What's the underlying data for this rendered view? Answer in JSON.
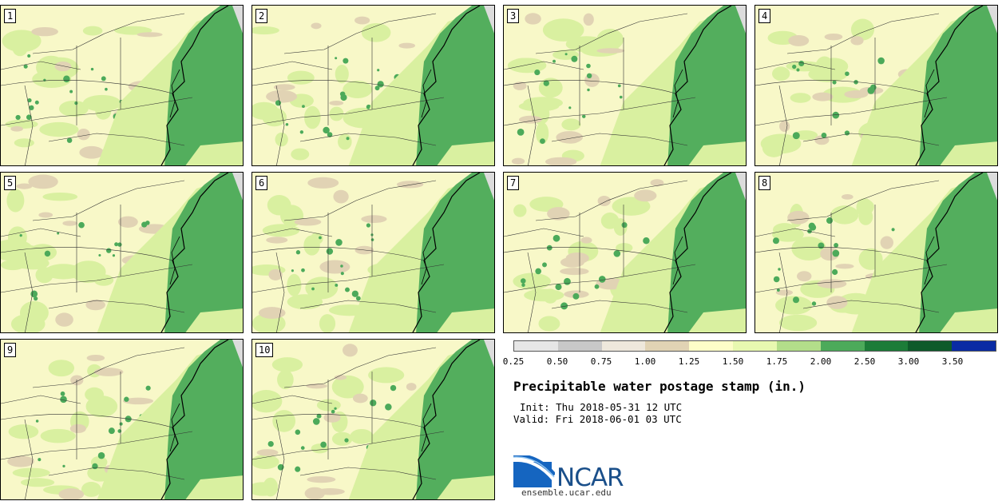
{
  "panels": [
    {
      "label": "1"
    },
    {
      "label": "2"
    },
    {
      "label": "3"
    },
    {
      "label": "4"
    },
    {
      "label": "5"
    },
    {
      "label": "6"
    },
    {
      "label": "7"
    },
    {
      "label": "8"
    },
    {
      "label": "9"
    },
    {
      "label": "10"
    }
  ],
  "colorbar": {
    "levels": [
      "0.25",
      "0.50",
      "0.75",
      "1.00",
      "1.25",
      "1.50",
      "1.75",
      "2.00",
      "2.50",
      "3.00",
      "3.50"
    ],
    "colors": [
      "#e6e6e6",
      "#c8c8c8",
      "#eee8dc",
      "#e1d3b4",
      "#fdfdc8",
      "#e8f8b0",
      "#b3de8a",
      "#4caa5a",
      "#1c7c38",
      "#0e5a2a",
      "#0a2ba4"
    ]
  },
  "title": "Precipitable water postage stamp (in.)",
  "init": "Init: Thu 2018-05-31 12 UTC",
  "valid": "Valid: Fri 2018-06-01 03 UTC",
  "logo": {
    "name": "NCAR",
    "url": "ensemble.ucar.edu"
  },
  "map_colors": {
    "land": "#f8f8c8",
    "mid": "#d9f0a0",
    "moist": "#4caa5a",
    "tan": "#e1d3b4",
    "ocean_edge": "#dcdcdc"
  }
}
